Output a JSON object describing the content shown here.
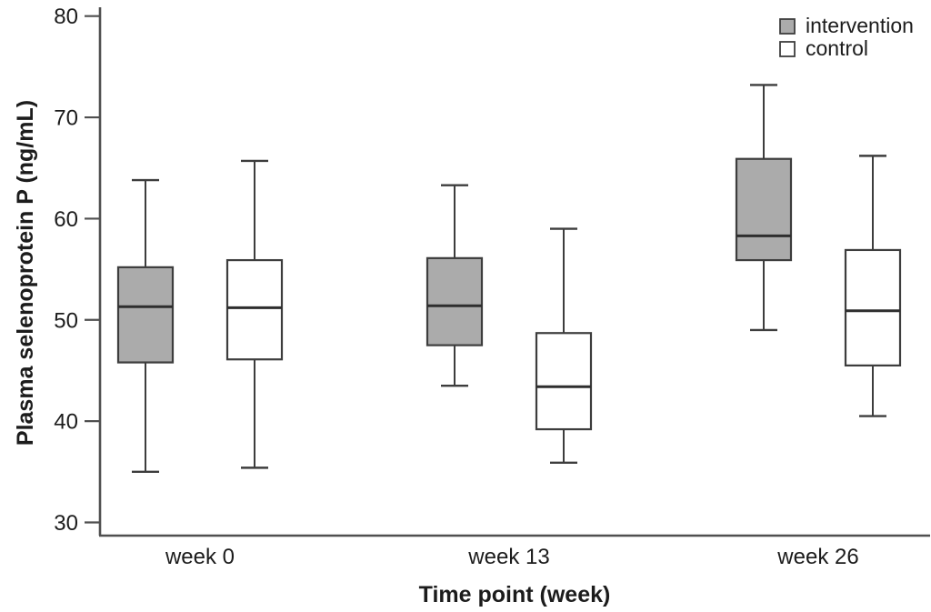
{
  "chart_data": {
    "type": "boxplot",
    "title": "",
    "xlabel": "Time point (week)",
    "ylabel": "Plasma selenoprotein P (ng/mL)",
    "ylim": [
      30,
      80
    ],
    "yticks": [
      30,
      40,
      50,
      60,
      70,
      80
    ],
    "categories": [
      "week 0",
      "week 13",
      "week 26"
    ],
    "grid": false,
    "legend_position": "top-right",
    "series": [
      {
        "name": "intervention",
        "fill": "#ababab",
        "boxes": [
          {
            "whisker_low": 35.0,
            "q1": 45.8,
            "median": 51.3,
            "q3": 55.2,
            "whisker_high": 63.8
          },
          {
            "whisker_low": 43.5,
            "q1": 47.5,
            "median": 51.4,
            "q3": 56.1,
            "whisker_high": 63.3
          },
          {
            "whisker_low": 49.0,
            "q1": 55.9,
            "median": 58.3,
            "q3": 65.9,
            "whisker_high": 73.2
          }
        ]
      },
      {
        "name": "control",
        "fill": "#ffffff",
        "boxes": [
          {
            "whisker_low": 35.4,
            "q1": 46.1,
            "median": 51.2,
            "q3": 55.9,
            "whisker_high": 65.7
          },
          {
            "whisker_low": 35.9,
            "q1": 39.2,
            "median": 43.4,
            "q3": 48.7,
            "whisker_high": 59.0
          },
          {
            "whisker_low": 40.5,
            "q1": 45.5,
            "median": 50.9,
            "q3": 56.9,
            "whisker_high": 66.2
          }
        ]
      }
    ]
  },
  "colors": {
    "intervention_fill": "#ababab",
    "control_fill": "#ffffff",
    "box_stroke": "#3d3d3d",
    "axis": "#4f4f4f",
    "text": "#1c1c1c",
    "background": "#ffffff"
  }
}
